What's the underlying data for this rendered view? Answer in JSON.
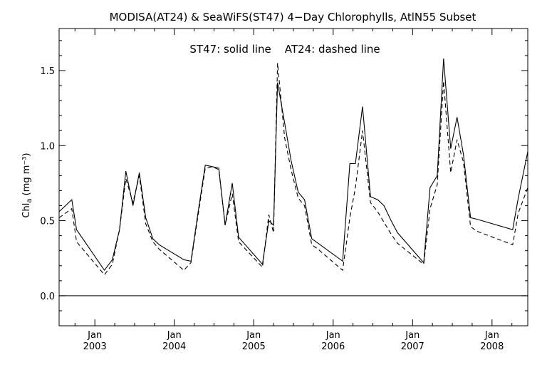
{
  "chart_data": {
    "type": "line",
    "title": "MODISA(AT24) & SeaWiFS(ST47) 4−Day Chlorophylls, AtlN55 Subset",
    "annotation": "ST47: solid line    AT24: dashed line",
    "ylabel_main": "Chl",
    "ylabel_sub": "a",
    "ylabel_unit": " (mg m⁻³)",
    "ylim": [
      -0.2,
      1.78
    ],
    "xlim": [
      2002.55,
      2008.45
    ],
    "yticks": [
      {
        "value": 0.0,
        "label": "0.0"
      },
      {
        "value": 0.5,
        "label": "0.5"
      },
      {
        "value": 1.0,
        "label": "1.0"
      },
      {
        "value": 1.5,
        "label": "1.5"
      }
    ],
    "xticks": [
      {
        "value": 2003.0,
        "month": "Jan",
        "year": "2003"
      },
      {
        "value": 2004.0,
        "month": "Jan",
        "year": "2004"
      },
      {
        "value": 2005.0,
        "month": "Jan",
        "year": "2005"
      },
      {
        "value": 2006.0,
        "month": "Jan",
        "year": "2006"
      },
      {
        "value": 2007.0,
        "month": "Jan",
        "year": "2007"
      },
      {
        "value": 2008.0,
        "month": "Jan",
        "year": "2008"
      }
    ],
    "reference_line": 0.0,
    "grid": false,
    "series": [
      {
        "name": "ST47",
        "style": "solid",
        "x": [
          2002.55,
          2002.71,
          2002.77,
          2003.12,
          2003.22,
          2003.31,
          2003.39,
          2003.48,
          2003.56,
          2003.64,
          2003.73,
          2003.81,
          2004.12,
          2004.21,
          2004.3,
          2004.39,
          2004.48,
          2004.56,
          2004.64,
          2004.73,
          2004.81,
          2005.11,
          2005.19,
          2005.25,
          2005.3,
          2005.39,
          2005.47,
          2005.56,
          2005.64,
          2005.73,
          2005.81,
          2006.12,
          2006.21,
          2006.28,
          2006.37,
          2006.47,
          2006.56,
          2006.64,
          2006.73,
          2006.81,
          2007.14,
          2007.22,
          2007.31,
          2007.39,
          2007.48,
          2007.56,
          2007.64,
          2007.73,
          2007.81,
          2008.26,
          2008.33,
          2008.45
        ],
        "y": [
          0.56,
          0.64,
          0.44,
          0.17,
          0.24,
          0.44,
          0.83,
          0.6,
          0.82,
          0.52,
          0.38,
          0.34,
          0.24,
          0.23,
          0.56,
          0.87,
          0.86,
          0.85,
          0.47,
          0.75,
          0.39,
          0.21,
          0.5,
          0.47,
          1.42,
          1.15,
          0.9,
          0.69,
          0.64,
          0.38,
          0.35,
          0.23,
          0.88,
          0.88,
          1.26,
          0.66,
          0.64,
          0.6,
          0.5,
          0.42,
          0.22,
          0.72,
          0.8,
          1.58,
          0.98,
          1.19,
          0.94,
          0.52,
          0.51,
          0.44,
          0.65,
          0.96
        ]
      },
      {
        "name": "AT24",
        "style": "dashed",
        "x": [
          2002.55,
          2002.71,
          2002.77,
          2003.12,
          2003.22,
          2003.31,
          2003.39,
          2003.48,
          2003.56,
          2003.64,
          2003.73,
          2003.81,
          2004.12,
          2004.21,
          2004.3,
          2004.39,
          2004.48,
          2004.56,
          2004.64,
          2004.73,
          2004.81,
          2005.11,
          2005.19,
          2005.25,
          2005.3,
          2005.39,
          2005.47,
          2005.56,
          2005.64,
          2005.73,
          2005.81,
          2006.12,
          2006.21,
          2006.28,
          2006.37,
          2006.47,
          2006.56,
          2006.64,
          2006.73,
          2006.81,
          2007.14,
          2007.22,
          2007.31,
          2007.39,
          2007.48,
          2007.56,
          2007.64,
          2007.73,
          2007.81,
          2008.26,
          2008.33,
          2008.45
        ],
        "y": [
          0.52,
          0.58,
          0.36,
          0.14,
          0.21,
          0.44,
          0.78,
          0.62,
          0.8,
          0.48,
          0.36,
          0.31,
          0.17,
          0.22,
          0.54,
          0.85,
          0.86,
          0.84,
          0.47,
          0.68,
          0.36,
          0.19,
          0.54,
          0.42,
          1.55,
          1.05,
          0.84,
          0.65,
          0.6,
          0.34,
          0.31,
          0.17,
          0.52,
          0.72,
          1.1,
          0.62,
          0.56,
          0.49,
          0.41,
          0.35,
          0.21,
          0.58,
          0.74,
          1.43,
          0.82,
          1.04,
          0.89,
          0.46,
          0.43,
          0.34,
          0.55,
          0.72
        ]
      }
    ]
  }
}
